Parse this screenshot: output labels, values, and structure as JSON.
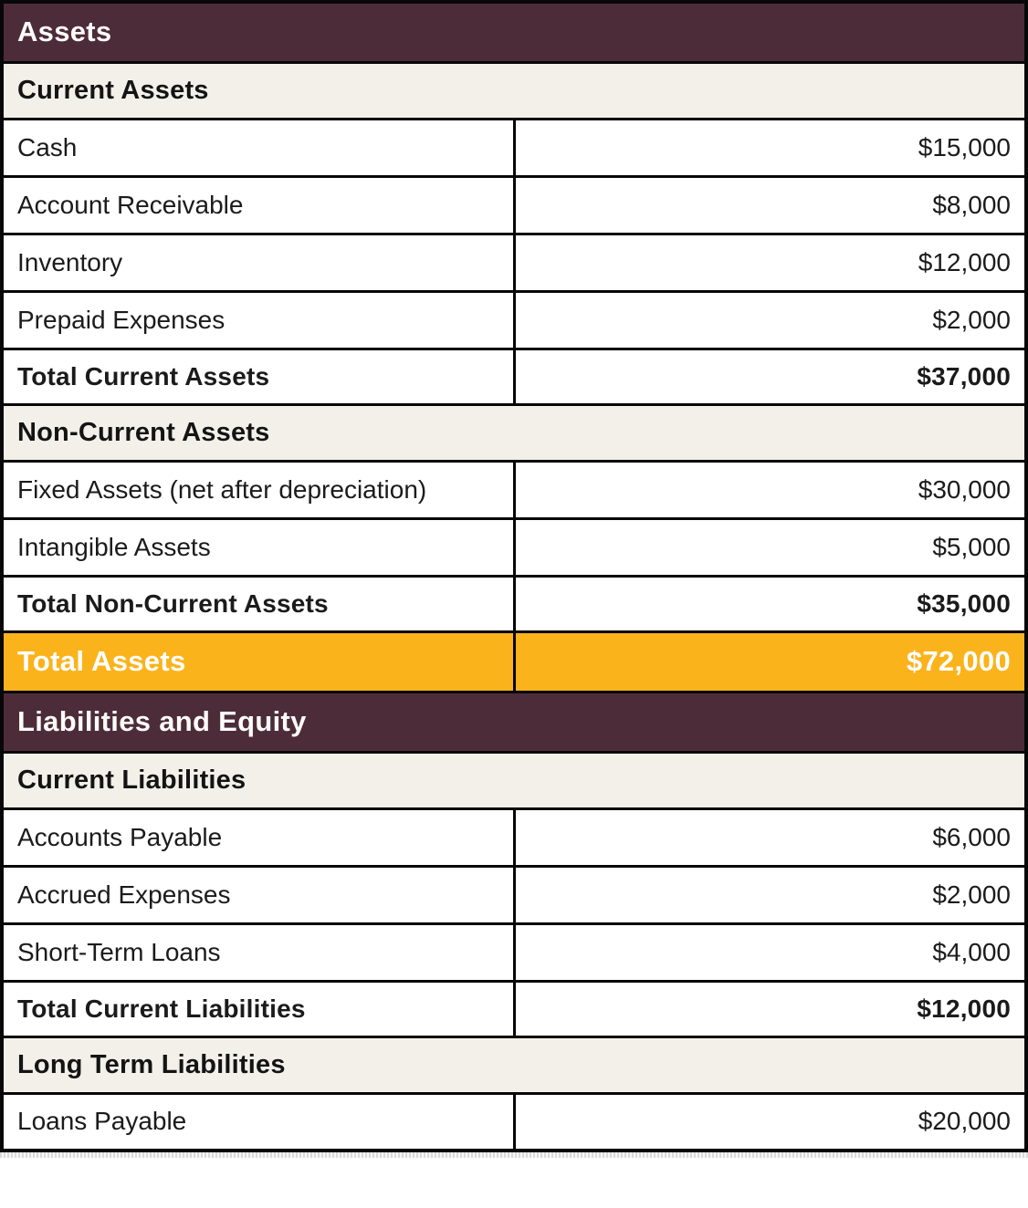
{
  "palette": {
    "section_header_bg": "#4D2C3A",
    "section_header_text": "#FDFCF8",
    "subheader_bg": "#F2F0E9",
    "grand_total_bg": "#FBB31C",
    "grand_total_text": "#FFFFFF",
    "row_bg": "#FFFFFF",
    "border": "#070707",
    "body_text": "#1B1B1B"
  },
  "table": {
    "columns": [
      "label",
      "value"
    ],
    "rows": [
      {
        "type": "section",
        "label": "Assets"
      },
      {
        "type": "subheader",
        "label": "Current Assets"
      },
      {
        "type": "item",
        "label": "Cash",
        "value": "$15,000",
        "amount": 15000
      },
      {
        "type": "item",
        "label": "Account Receivable",
        "value": "$8,000",
        "amount": 8000
      },
      {
        "type": "item",
        "label": "Inventory",
        "value": "$12,000",
        "amount": 12000
      },
      {
        "type": "item",
        "label": "Prepaid Expenses",
        "value": "$2,000",
        "amount": 2000
      },
      {
        "type": "total",
        "label": "Total Current Assets",
        "value": "$37,000",
        "amount": 37000
      },
      {
        "type": "subheader",
        "label": "Non-Current Assets"
      },
      {
        "type": "item",
        "label": "Fixed Assets (net after depreciation)",
        "value": "$30,000",
        "amount": 30000
      },
      {
        "type": "item",
        "label": "Intangible Assets",
        "value": "$5,000",
        "amount": 5000
      },
      {
        "type": "total",
        "label": "Total Non-Current Assets",
        "value": "$35,000",
        "amount": 35000
      },
      {
        "type": "grandtotal",
        "label": "Total Assets",
        "value": "$72,000",
        "amount": 72000
      },
      {
        "type": "section",
        "label": "Liabilities and Equity"
      },
      {
        "type": "subheader",
        "label": "Current Liabilities"
      },
      {
        "type": "item",
        "label": "Accounts Payable",
        "value": "$6,000",
        "amount": 6000
      },
      {
        "type": "item",
        "label": "Accrued Expenses",
        "value": "$2,000",
        "amount": 2000
      },
      {
        "type": "item",
        "label": "Short-Term Loans",
        "value": "$4,000",
        "amount": 4000
      },
      {
        "type": "total",
        "label": "Total Current Liabilities",
        "value": "$12,000",
        "amount": 12000
      },
      {
        "type": "subheader",
        "label": "Long Term Liabilities"
      },
      {
        "type": "item",
        "label": "Loans Payable",
        "value": "$20,000",
        "amount": 20000
      }
    ]
  }
}
